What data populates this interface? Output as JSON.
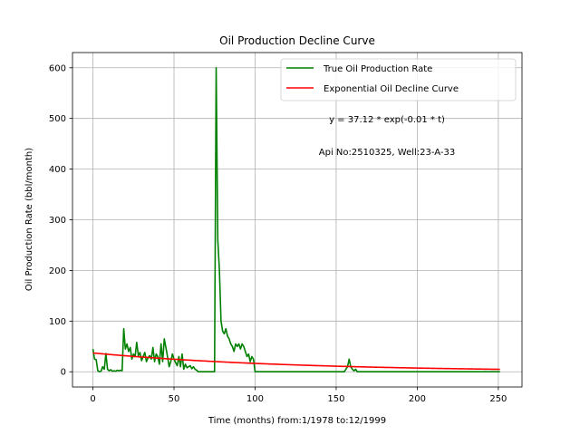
{
  "chart_data": {
    "type": "line",
    "title": "Oil Production Decline Curve",
    "xlabel": "Time (months) from:1/1978 to:12/1999",
    "ylabel": "Oil Production Rate (bbl/month)",
    "xlim": [
      -12.6,
      264.6
    ],
    "ylim": [
      -30,
      630
    ],
    "xticks": [
      0,
      50,
      100,
      150,
      200,
      250
    ],
    "yticks": [
      0,
      100,
      200,
      300,
      400,
      500,
      600
    ],
    "grid": true,
    "legend_position": "upper-right",
    "annotations": [
      {
        "text": "y = 37.12 * exp(-0.01 * t)",
        "x": 180,
        "y": 497
      },
      {
        "text": "Api No:2510325, Well:23-A-33",
        "x": 180,
        "y": 431
      }
    ],
    "series": [
      {
        "name": "True Oil Production Rate",
        "color": "#008000",
        "x": [
          0,
          1,
          2,
          3,
          4,
          5,
          6,
          7,
          8,
          9,
          10,
          11,
          12,
          13,
          14,
          15,
          16,
          17,
          18,
          19,
          20,
          21,
          22,
          23,
          24,
          25,
          26,
          27,
          28,
          29,
          30,
          31,
          32,
          33,
          34,
          35,
          36,
          37,
          38,
          39,
          40,
          41,
          42,
          43,
          44,
          45,
          46,
          47,
          48,
          49,
          50,
          51,
          52,
          53,
          54,
          55,
          56,
          57,
          58,
          59,
          60,
          61,
          62,
          63,
          64,
          65,
          66,
          67,
          68,
          69,
          70,
          71,
          72,
          73,
          74,
          75,
          76,
          77,
          78,
          79,
          80,
          81,
          82,
          83,
          84,
          85,
          86,
          87,
          88,
          89,
          90,
          91,
          92,
          93,
          94,
          95,
          96,
          97,
          98,
          99,
          100,
          110,
          120,
          130,
          140,
          150,
          155,
          156,
          157,
          158,
          159,
          160,
          161,
          162,
          163,
          170,
          180,
          190,
          200,
          210,
          220,
          230,
          240,
          251
        ],
        "y": [
          45,
          25,
          24,
          2,
          0,
          1,
          10,
          5,
          36,
          5,
          2,
          4,
          1,
          2,
          1,
          3,
          2,
          3,
          2,
          85,
          45,
          55,
          40,
          48,
          25,
          35,
          30,
          58,
          32,
          38,
          22,
          30,
          38,
          20,
          28,
          32,
          25,
          48,
          20,
          35,
          30,
          15,
          55,
          20,
          65,
          48,
          30,
          10,
          20,
          35,
          25,
          18,
          12,
          30,
          10,
          35,
          5,
          15,
          8,
          10,
          12,
          6,
          10,
          5,
          3,
          0,
          0,
          0,
          0,
          0,
          0,
          0,
          0,
          0,
          0,
          0,
          600,
          260,
          200,
          100,
          80,
          75,
          85,
          70,
          65,
          55,
          50,
          40,
          55,
          50,
          55,
          45,
          55,
          50,
          40,
          30,
          35,
          20,
          30,
          25,
          0,
          0,
          0,
          0,
          0,
          0,
          0,
          5,
          10,
          25,
          10,
          5,
          2,
          5,
          0,
          0,
          0,
          0,
          0,
          0,
          0,
          0,
          0,
          0
        ]
      },
      {
        "name": "Exponential Oil Decline Curve",
        "color": "#ff0000",
        "fit": {
          "a": 37.12,
          "b": 0.0081,
          "x_start": 0,
          "x_end": 251
        }
      }
    ]
  }
}
